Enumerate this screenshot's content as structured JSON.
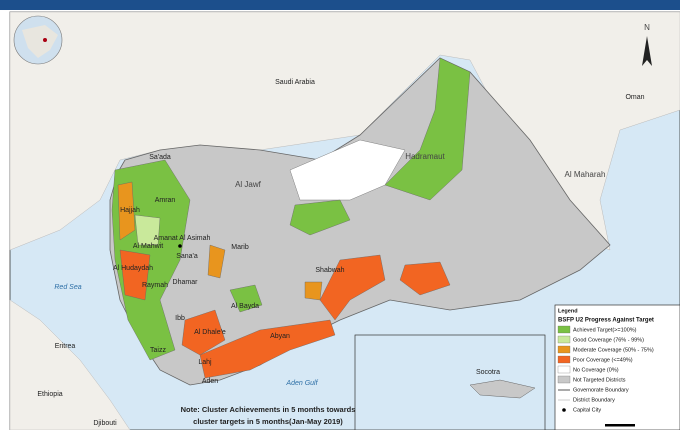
{
  "compass": "N",
  "countries": [
    "Saudi Arabia",
    "Oman",
    "Eritrea",
    "Ethiopia",
    "Djibouti"
  ],
  "seas": [
    "Red Sea",
    "Aden Gulf"
  ],
  "governorates": [
    "Sa'ada",
    "Al Jawf",
    "Hadramaut",
    "Al Maharah",
    "Amran",
    "Hajjah",
    "Amanat Al Asimah",
    "Sana'a",
    "Marib",
    "Al Mahwit",
    "Al Hudaydah",
    "Raymah",
    "Dhamar",
    "Al Bayda",
    "Shabwah",
    "Ibb",
    "Al Dhale'e",
    "Abyan",
    "Taizz",
    "Lahj",
    "Aden"
  ],
  "inset_label": "Socotra",
  "note": [
    "Note: Cluster Achievements in  5  months towards",
    "cluster targets in 5 months(Jan-May 2019)"
  ],
  "legend": {
    "title": "Legend",
    "subtitle": "BSFP U2 Progress Against Target",
    "items": [
      "Achieved Target(>=100%)",
      "Good Coverage (76% - 99%)",
      "Moderate Coverage (50% - 75%)",
      "Poor Coverage (<=49%)",
      "No Coverage (0%)",
      "Not Targeted Districts",
      "Governorate Boundary",
      "District Boundary",
      "Capital City"
    ]
  }
}
